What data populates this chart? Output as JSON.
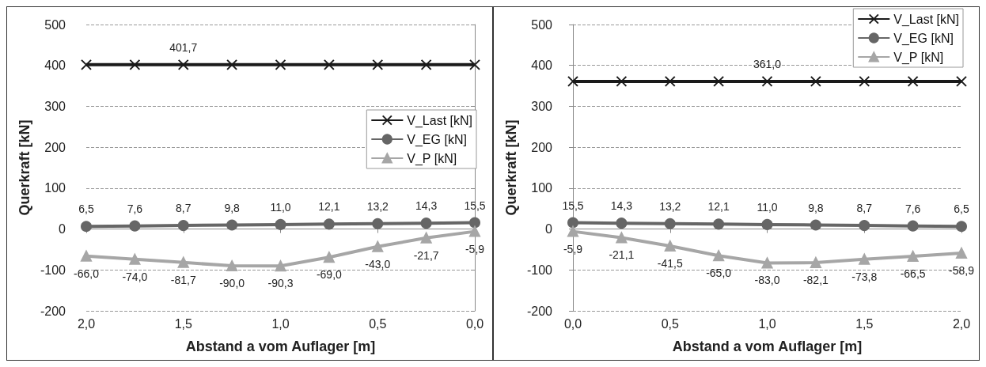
{
  "chart_data": [
    {
      "type": "line",
      "xlabel": "Abstand a vom Auflager [m]",
      "ylabel": "Querkraft [kN]",
      "x": [
        2,
        1.75,
        1.5,
        1.25,
        1,
        0.75,
        0.5,
        0.25,
        0
      ],
      "xlim": [
        2,
        0
      ],
      "xticks": [
        {
          "value": 2,
          "label": "2,0"
        },
        {
          "value": 1.5,
          "label": "1,5"
        },
        {
          "value": 1,
          "label": "1,0"
        },
        {
          "value": 0.5,
          "label": "0,5"
        },
        {
          "value": 0,
          "label": "0,0"
        }
      ],
      "ylim": [
        -200,
        500
      ],
      "yticks": [
        -200,
        -100,
        0,
        100,
        200,
        300,
        400,
        500
      ],
      "grid": "y",
      "legend": "right",
      "series": [
        {
          "name": "V_Last [kN]",
          "color": "#1a1a1a",
          "marker": "cross",
          "values": [
            401.7,
            401.7,
            401.7,
            401.7,
            401.7,
            401.7,
            401.7,
            401.7,
            401.7
          ],
          "value_labels": [
            null,
            null,
            "401,7",
            null,
            null,
            null,
            null,
            null,
            null
          ]
        },
        {
          "name": "V_EG [kN]",
          "color": "#666666",
          "marker": "circle",
          "values": [
            6.5,
            7.6,
            8.7,
            9.8,
            11.0,
            12.1,
            13.2,
            14.3,
            15.5
          ],
          "value_labels": [
            "6,5",
            "7,6",
            "8,7",
            "9,8",
            "11,0",
            "12,1",
            "13,2",
            "14,3",
            "15,5"
          ]
        },
        {
          "name": "V_P [kN]",
          "color": "#a6a6a6",
          "marker": "triangle",
          "values": [
            -66.0,
            -74.0,
            -81.7,
            -90.0,
            -90.3,
            -69.0,
            -43.0,
            -21.7,
            -5.9
          ],
          "value_labels": [
            "-66,0",
            "-74,0",
            "-81,7",
            "-90,0",
            "-90,3",
            "-69,0",
            "-43,0",
            "-21,7",
            "-5,9"
          ]
        }
      ]
    },
    {
      "type": "line",
      "xlabel": "Abstand a vom Auflager [m]",
      "ylabel": "Querkraft [kN]",
      "x": [
        0,
        0.25,
        0.5,
        0.75,
        1,
        1.25,
        1.5,
        1.75,
        2
      ],
      "xlim": [
        0,
        2
      ],
      "xticks": [
        {
          "value": 0,
          "label": "0,0"
        },
        {
          "value": 0.5,
          "label": "0,5"
        },
        {
          "value": 1,
          "label": "1,0"
        },
        {
          "value": 1.5,
          "label": "1,5"
        },
        {
          "value": 2,
          "label": "2,0"
        }
      ],
      "ylim": [
        -200,
        500
      ],
      "yticks": [
        -200,
        -100,
        0,
        100,
        200,
        300,
        400,
        500
      ],
      "grid": "y",
      "legend": "top right",
      "series": [
        {
          "name": "V_Last [kN]",
          "color": "#1a1a1a",
          "marker": "cross",
          "values": [
            361.0,
            361.0,
            361.0,
            361.0,
            361.0,
            361.0,
            361.0,
            361.0,
            361.0
          ],
          "value_labels": [
            null,
            null,
            null,
            null,
            "361,0",
            null,
            null,
            null,
            null
          ]
        },
        {
          "name": "V_EG [kN]",
          "color": "#666666",
          "marker": "circle",
          "values": [
            15.5,
            14.3,
            13.2,
            12.1,
            11.0,
            9.8,
            8.7,
            7.6,
            6.5
          ],
          "value_labels": [
            "15,5",
            "14,3",
            "13,2",
            "12,1",
            "11,0",
            "9,8",
            "8,7",
            "7,6",
            "6,5"
          ]
        },
        {
          "name": "V_P [kN]",
          "color": "#a6a6a6",
          "marker": "triangle",
          "values": [
            -5.9,
            -21.1,
            -41.5,
            -65.0,
            -83.0,
            -82.1,
            -73.8,
            -66.5,
            -58.9
          ],
          "value_labels": [
            "-5,9",
            "-21,1",
            "-41,5",
            "-65,0",
            "-83,0",
            "-82,1",
            "-73,8",
            "-66,5",
            "-58,9"
          ]
        }
      ]
    }
  ]
}
